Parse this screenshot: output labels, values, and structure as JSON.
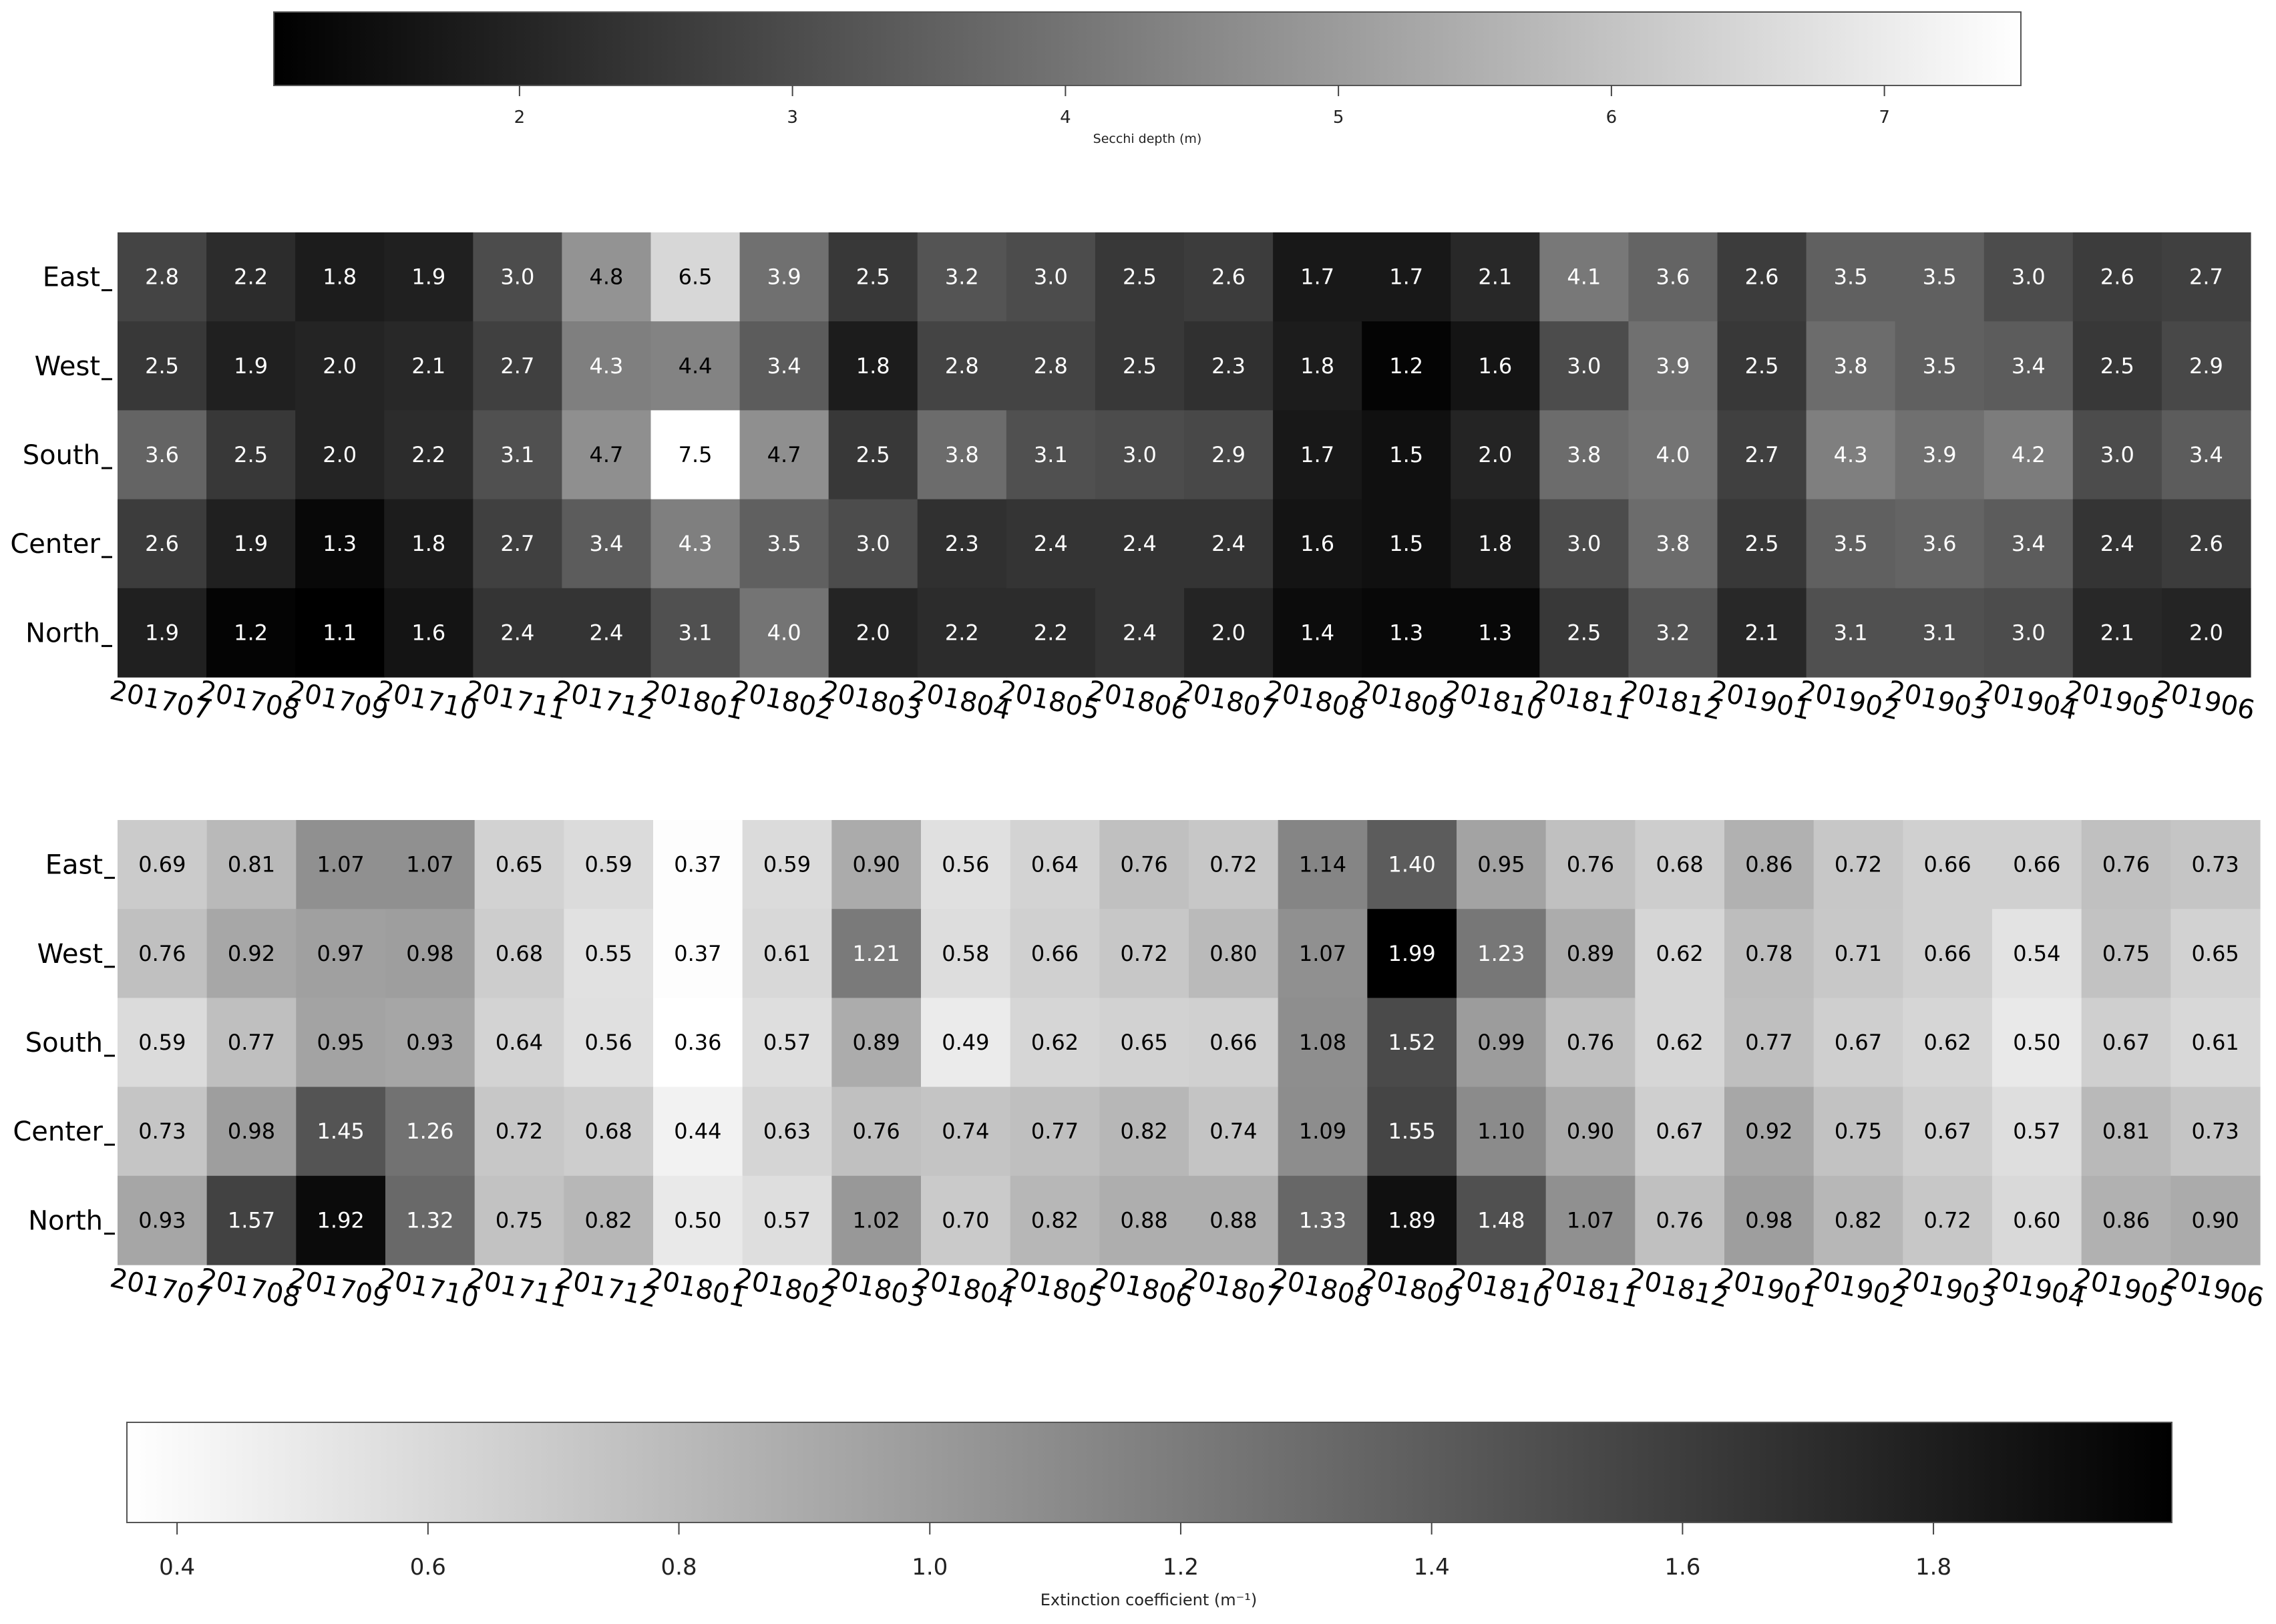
{
  "chart_data": [
    {
      "type": "heatmap",
      "title": "",
      "colorscale": "black-to-white",
      "rows": [
        "East",
        "West",
        "South",
        "Center",
        "North"
      ],
      "columns": [
        "201707",
        "201708",
        "201709",
        "201710",
        "201711",
        "201712",
        "201801",
        "201802",
        "201803",
        "201804",
        "201805",
        "201806",
        "201807",
        "201808",
        "201809",
        "201810",
        "201811",
        "201812",
        "201901",
        "201902",
        "201903",
        "201904",
        "201905",
        "201906"
      ],
      "values": [
        [
          2.8,
          2.2,
          1.8,
          1.9,
          3.0,
          4.8,
          6.5,
          3.9,
          2.5,
          3.2,
          3.0,
          2.5,
          2.6,
          1.7,
          1.7,
          2.1,
          4.1,
          3.6,
          2.6,
          3.5,
          3.5,
          3.0,
          2.6,
          2.7
        ],
        [
          2.5,
          1.9,
          2.0,
          2.1,
          2.7,
          4.3,
          4.4,
          3.4,
          1.8,
          2.8,
          2.8,
          2.5,
          2.3,
          1.8,
          1.2,
          1.6,
          3.0,
          3.9,
          2.5,
          3.8,
          3.5,
          3.4,
          2.5,
          2.9
        ],
        [
          3.6,
          2.5,
          2.0,
          2.2,
          3.1,
          4.7,
          7.5,
          4.7,
          2.5,
          3.8,
          3.1,
          3.0,
          2.9,
          1.7,
          1.5,
          2.0,
          3.8,
          4.0,
          2.7,
          4.3,
          3.9,
          4.2,
          3.0,
          3.4
        ],
        [
          2.6,
          1.9,
          1.3,
          1.8,
          2.7,
          3.4,
          4.3,
          3.5,
          3.0,
          2.3,
          2.4,
          2.4,
          2.4,
          1.6,
          1.5,
          1.8,
          3.0,
          3.8,
          2.5,
          3.5,
          3.6,
          3.4,
          2.4,
          2.6
        ],
        [
          1.9,
          1.2,
          1.1,
          1.6,
          2.4,
          2.4,
          3.1,
          4.0,
          2.0,
          2.2,
          2.2,
          2.4,
          2.0,
          1.4,
          1.3,
          1.3,
          2.5,
          3.2,
          2.1,
          3.1,
          3.1,
          3.0,
          2.1,
          2.0
        ]
      ],
      "value_decimals": 1,
      "colorbar": {
        "label": "Secchi depth (m)",
        "ticks": [
          "2",
          "3",
          "4",
          "5",
          "6",
          "7"
        ],
        "range": [
          1.1,
          7.5
        ],
        "placement": "top"
      }
    },
    {
      "type": "heatmap",
      "title": "",
      "colorscale": "white-to-black",
      "rows": [
        "East",
        "West",
        "South",
        "Center",
        "North"
      ],
      "columns": [
        "201707",
        "201708",
        "201709",
        "201710",
        "201711",
        "201712",
        "201801",
        "201802",
        "201803",
        "201804",
        "201805",
        "201806",
        "201807",
        "201808",
        "201809",
        "201810",
        "201811",
        "201812",
        "201901",
        "201902",
        "201903",
        "201904",
        "201905",
        "201906"
      ],
      "values": [
        [
          0.69,
          0.81,
          1.07,
          1.07,
          0.65,
          0.59,
          0.37,
          0.59,
          0.9,
          0.56,
          0.64,
          0.76,
          0.72,
          1.14,
          1.4,
          0.95,
          0.76,
          0.68,
          0.86,
          0.72,
          0.66,
          0.66,
          0.76,
          0.73
        ],
        [
          0.76,
          0.92,
          0.97,
          0.98,
          0.68,
          0.55,
          0.37,
          0.61,
          1.21,
          0.58,
          0.66,
          0.72,
          0.8,
          1.07,
          1.99,
          1.23,
          0.89,
          0.62,
          0.78,
          0.71,
          0.66,
          0.54,
          0.75,
          0.65
        ],
        [
          0.59,
          0.77,
          0.95,
          0.93,
          0.64,
          0.56,
          0.36,
          0.57,
          0.89,
          0.49,
          0.62,
          0.65,
          0.66,
          1.08,
          1.52,
          0.99,
          0.76,
          0.62,
          0.77,
          0.67,
          0.62,
          0.5,
          0.67,
          0.61
        ],
        [
          0.73,
          0.98,
          1.45,
          1.26,
          0.72,
          0.68,
          0.44,
          0.63,
          0.76,
          0.74,
          0.77,
          0.82,
          0.74,
          1.09,
          1.55,
          1.1,
          0.9,
          0.67,
          0.92,
          0.75,
          0.67,
          0.57,
          0.81,
          0.73
        ],
        [
          0.93,
          1.57,
          1.92,
          1.32,
          0.75,
          0.82,
          0.5,
          0.57,
          1.02,
          0.7,
          0.82,
          0.88,
          0.88,
          1.33,
          1.89,
          1.48,
          1.07,
          0.76,
          0.98,
          0.82,
          0.72,
          0.6,
          0.86,
          0.9
        ]
      ],
      "value_decimals": 2,
      "colorbar": {
        "label": "Extinction coefficient (m⁻¹)",
        "ticks": [
          "0.4",
          "0.6",
          "0.8",
          "1.0",
          "1.2",
          "1.4",
          "1.6",
          "1.8"
        ],
        "range": [
          0.36,
          1.99
        ],
        "placement": "bottom"
      }
    }
  ]
}
